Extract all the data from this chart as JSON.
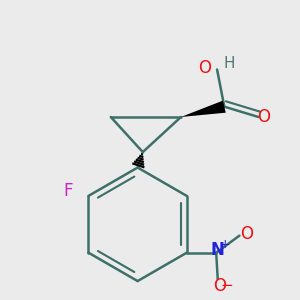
{
  "background_color": "#ebebeb",
  "bond_color": "#3d7068",
  "bond_width": 1.8,
  "atom_colors": {
    "O": "#ee1111",
    "N": "#2222dd",
    "F": "#cc22cc",
    "H": "#557777",
    "C": "#000000"
  },
  "font_size": 12,
  "wedge_color": "#000000",
  "figsize": [
    3.0,
    3.0
  ],
  "dpi": 100
}
